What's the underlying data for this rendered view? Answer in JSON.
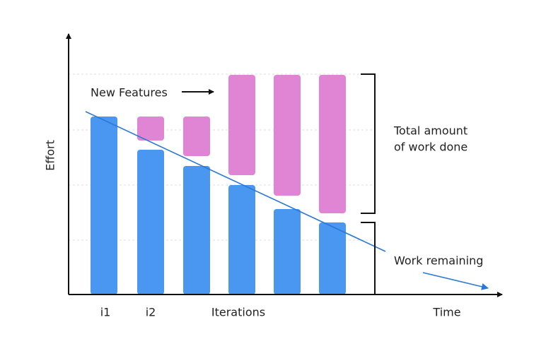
{
  "axes": {
    "y_label": "Effort",
    "x_label": "Time"
  },
  "iterations": {
    "labels": [
      "i1",
      "i2"
    ],
    "caption": "Iterations"
  },
  "annotations": {
    "new_features": "New Features",
    "total_work": [
      "Total amount",
      "of work done"
    ],
    "work_remaining": "Work remaining"
  }
}
